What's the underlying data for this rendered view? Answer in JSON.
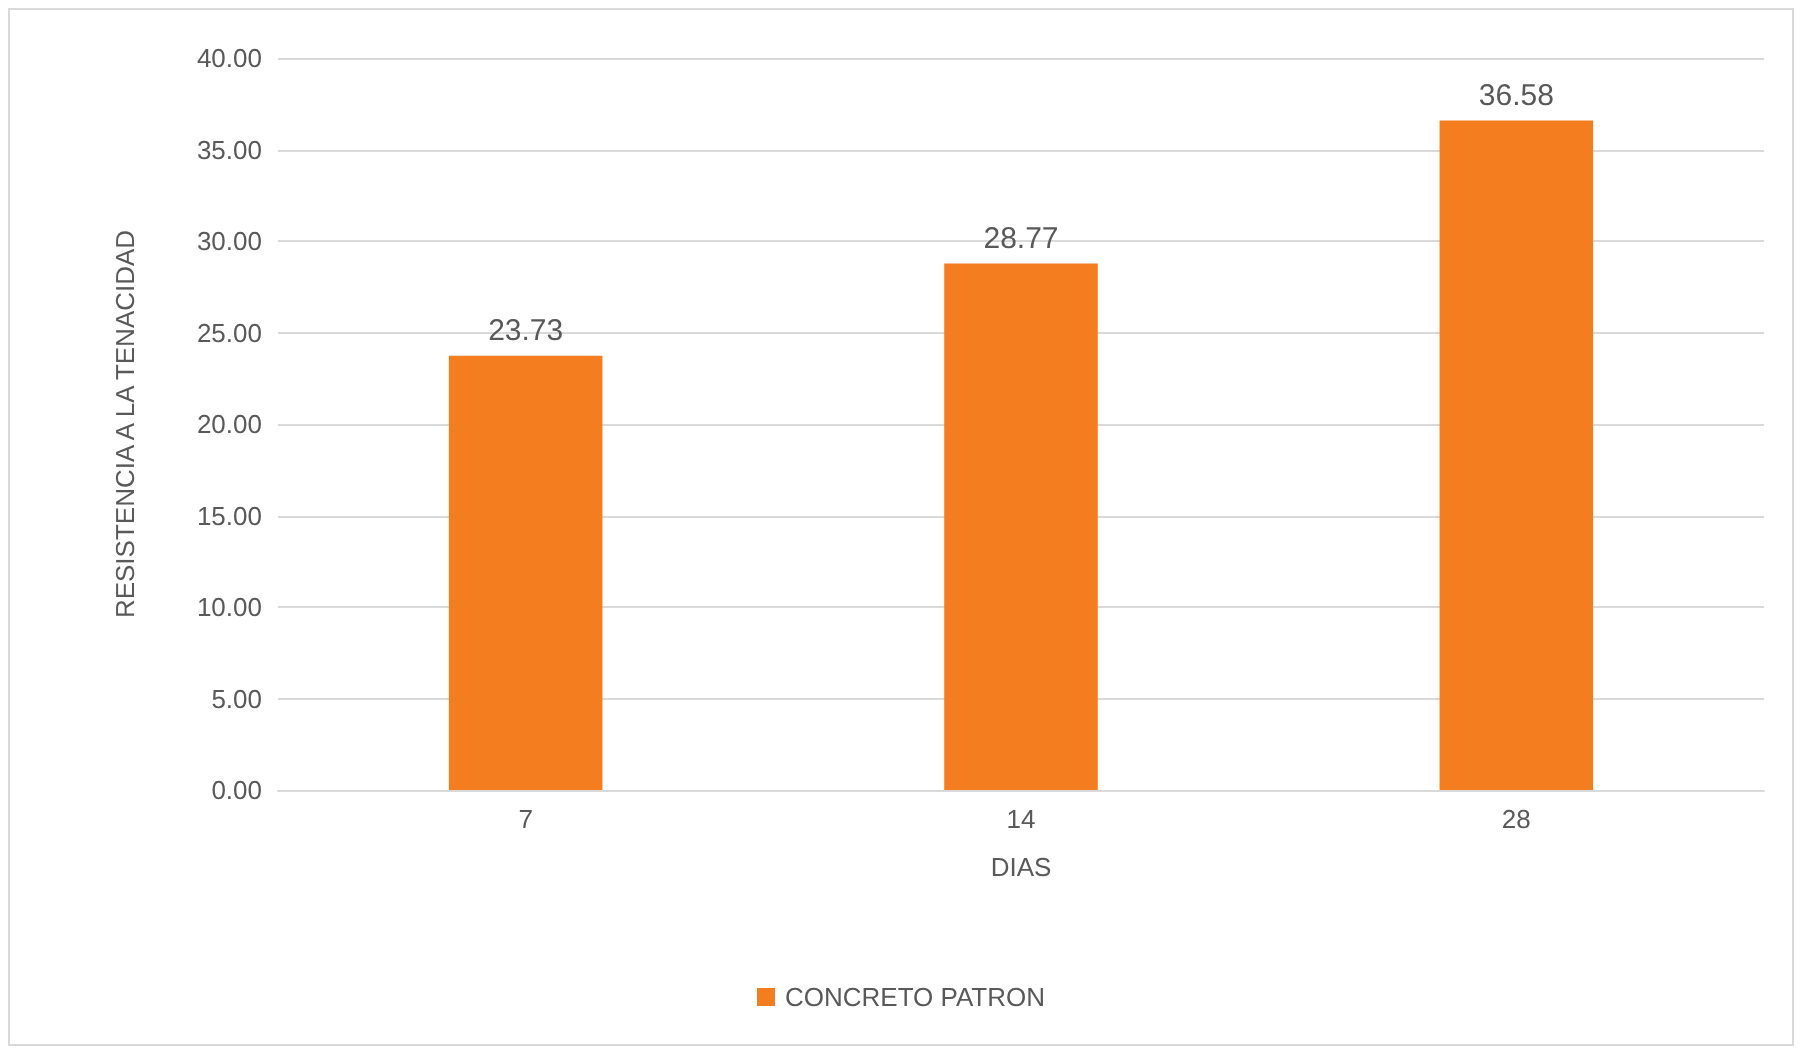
{
  "chart_data": {
    "type": "bar",
    "xlabel": "DIAS",
    "ylabel": "RESISTENCIA A LA TENACIDAD",
    "categories": [
      "7",
      "14",
      "28"
    ],
    "series": [
      {
        "name": "CONCRETO PATRON",
        "color": "#f47d20",
        "values": [
          23.73,
          28.77,
          36.58
        ]
      }
    ],
    "ylim": [
      0,
      40
    ],
    "yticks": [
      {
        "value": 0,
        "label": "0.00"
      },
      {
        "value": 5,
        "label": "5.00"
      },
      {
        "value": 10,
        "label": "10.00"
      },
      {
        "value": 15,
        "label": "15.00"
      },
      {
        "value": 20,
        "label": "20.00"
      },
      {
        "value": 25,
        "label": "25.00"
      },
      {
        "value": 30,
        "label": "30.00"
      },
      {
        "value": 35,
        "label": "35.00"
      },
      {
        "value": 40,
        "label": "40.00"
      }
    ],
    "grid": "y",
    "data_labels": true,
    "legend": "bottom"
  }
}
